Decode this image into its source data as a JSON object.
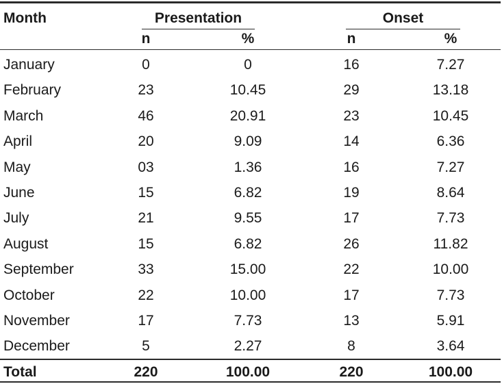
{
  "table": {
    "header": {
      "month_label": "Month",
      "presentation_label": "Presentation",
      "onset_label": "Onset",
      "n_label": "n",
      "pct_label": "%"
    },
    "rows": [
      {
        "month": "January",
        "pres_n": "0",
        "pres_pct": "0",
        "onset_n": "16",
        "onset_pct": "7.27"
      },
      {
        "month": "February",
        "pres_n": "23",
        "pres_pct": "10.45",
        "onset_n": "29",
        "onset_pct": "13.18"
      },
      {
        "month": "March",
        "pres_n": "46",
        "pres_pct": "20.91",
        "onset_n": "23",
        "onset_pct": "10.45"
      },
      {
        "month": "April",
        "pres_n": "20",
        "pres_pct": "9.09",
        "onset_n": "14",
        "onset_pct": "6.36"
      },
      {
        "month": "May",
        "pres_n": "03",
        "pres_pct": "1.36",
        "onset_n": "16",
        "onset_pct": "7.27"
      },
      {
        "month": "June",
        "pres_n": "15",
        "pres_pct": "6.82",
        "onset_n": "19",
        "onset_pct": "8.64"
      },
      {
        "month": "July",
        "pres_n": "21",
        "pres_pct": "9.55",
        "onset_n": "17",
        "onset_pct": "7.73"
      },
      {
        "month": "August",
        "pres_n": "15",
        "pres_pct": "6.82",
        "onset_n": "26",
        "onset_pct": "11.82"
      },
      {
        "month": "September",
        "pres_n": "33",
        "pres_pct": "15.00",
        "onset_n": "22",
        "onset_pct": "10.00"
      },
      {
        "month": "October",
        "pres_n": "22",
        "pres_pct": "10.00",
        "onset_n": "17",
        "onset_pct": "7.73"
      },
      {
        "month": "November",
        "pres_n": "17",
        "pres_pct": "7.73",
        "onset_n": "13",
        "onset_pct": "5.91"
      },
      {
        "month": "December",
        "pres_n": "5",
        "pres_pct": "2.27",
        "onset_n": "8",
        "onset_pct": "3.64"
      }
    ],
    "total": {
      "label": "Total",
      "pres_n": "220",
      "pres_pct": "100.00",
      "onset_n": "220",
      "onset_pct": "100.00"
    }
  }
}
